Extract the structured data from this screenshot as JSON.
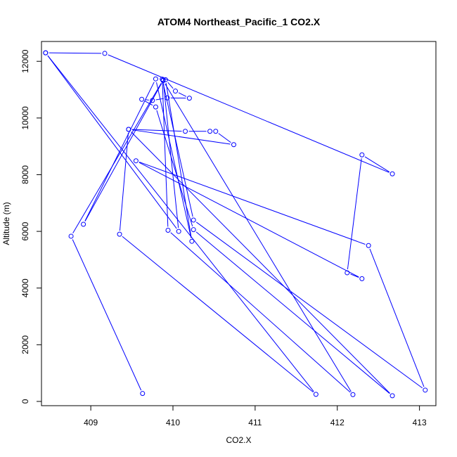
{
  "chart_data": {
    "type": "line",
    "title": "ATOM4 Northeast_Pacific_1 CO2.X",
    "xlabel": "CO2.X",
    "ylabel": "Altitude (m)",
    "xlim": [
      408.4,
      413.2
    ],
    "ylim": [
      -150,
      12700
    ],
    "xticks": [
      409,
      410,
      411,
      412,
      413
    ],
    "yticks": [
      0,
      2000,
      4000,
      6000,
      8000,
      10000,
      12000
    ],
    "grid": false,
    "series_color": "#0000ff",
    "points": [
      {
        "x": 408.45,
        "y": 12300
      },
      {
        "x": 409.17,
        "y": 12280
      },
      {
        "x": 412.67,
        "y": 8030
      },
      {
        "x": 412.3,
        "y": 8700
      },
      {
        "x": 412.12,
        "y": 4540
      },
      {
        "x": 412.3,
        "y": 4330
      },
      {
        "x": 409.55,
        "y": 8490
      },
      {
        "x": 412.38,
        "y": 5500
      },
      {
        "x": 413.07,
        "y": 400
      },
      {
        "x": 410.25,
        "y": 6400
      },
      {
        "x": 409.87,
        "y": 11370
      },
      {
        "x": 409.94,
        "y": 6040
      },
      {
        "x": 412.19,
        "y": 240
      },
      {
        "x": 409.88,
        "y": 11320
      },
      {
        "x": 408.91,
        "y": 6250
      },
      {
        "x": 409.79,
        "y": 11380
      },
      {
        "x": 410.23,
        "y": 5650
      },
      {
        "x": 409.91,
        "y": 11350
      },
      {
        "x": 410.03,
        "y": 10950
      },
      {
        "x": 410.2,
        "y": 10700
      },
      {
        "x": 409.93,
        "y": 10710
      },
      {
        "x": 409.75,
        "y": 10620
      },
      {
        "x": 409.62,
        "y": 10660
      },
      {
        "x": 409.79,
        "y": 10390
      },
      {
        "x": 410.25,
        "y": 6060
      },
      {
        "x": 412.67,
        "y": 200
      },
      {
        "x": 409.46,
        "y": 9600
      },
      {
        "x": 410.15,
        "y": 9530
      },
      {
        "x": 410.45,
        "y": 9530
      },
      {
        "x": 410.52,
        "y": 9530
      },
      {
        "x": 410.74,
        "y": 9060
      },
      {
        "x": 409.46,
        "y": 9600
      },
      {
        "x": 409.35,
        "y": 5900
      },
      {
        "x": 411.74,
        "y": 250
      },
      {
        "x": 408.45,
        "y": 12300
      },
      {
        "x": 410.07,
        "y": 6000
      },
      {
        "x": 409.88,
        "y": 11340
      },
      {
        "x": 408.76,
        "y": 5830
      },
      {
        "x": 409.63,
        "y": 280
      }
    ]
  }
}
